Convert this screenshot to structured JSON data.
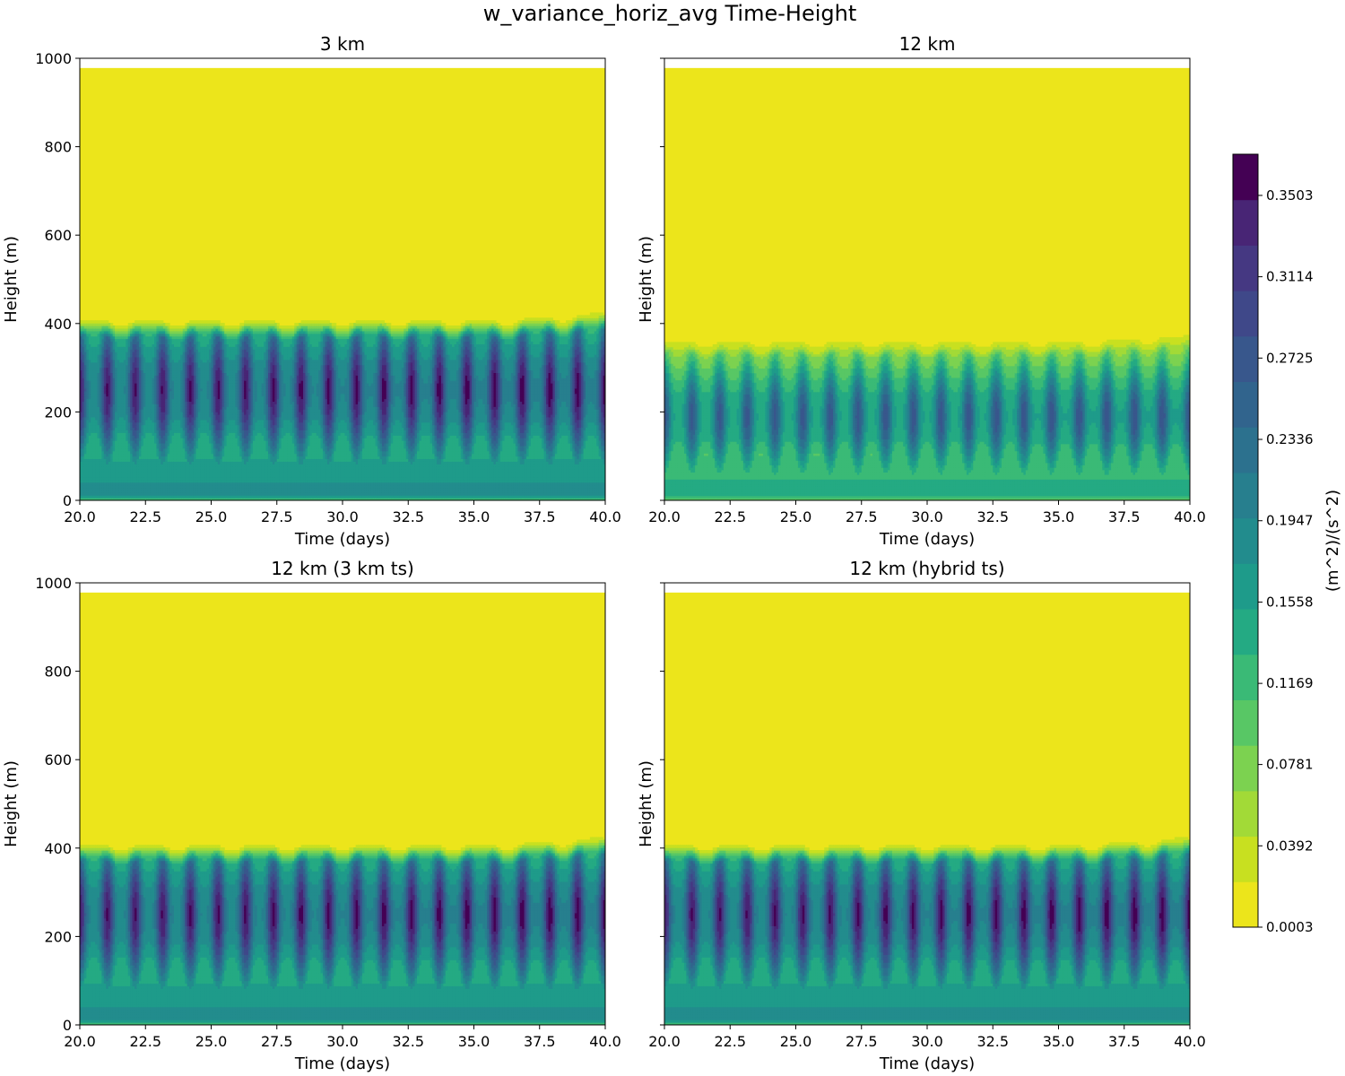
{
  "chart_data": {
    "type": "heatmap",
    "title": "w_variance_horiz_avg Time-Height",
    "x_range": [
      20.0,
      40.0
    ],
    "y_range": [
      0,
      1000
    ],
    "x_ticks": [
      "20.0",
      "22.5",
      "25.0",
      "27.5",
      "30.0",
      "32.5",
      "35.0",
      "37.5",
      "40.0"
    ],
    "y_ticks": [
      "0",
      "200",
      "400",
      "600",
      "800",
      "1000"
    ],
    "panels": [
      {
        "title": "3 km",
        "xlabel": "Time (days)",
        "ylabel": "Height (m)",
        "bl_top": 400,
        "core_height": 250,
        "peak": 0.35,
        "cycles": 19,
        "data_top": 978
      },
      {
        "title": "12 km",
        "xlabel": "Time (days)",
        "ylabel": "Height (m)",
        "bl_top": 360,
        "core_height": 190,
        "peak": 0.27,
        "cycles": 19,
        "data_top": 978
      },
      {
        "title": "12 km (3 km ts)",
        "xlabel": "Time (days)",
        "ylabel": "Height (m)",
        "bl_top": 400,
        "core_height": 250,
        "peak": 0.35,
        "cycles": 19,
        "data_top": 978
      },
      {
        "title": "12 km (hybrid ts)",
        "xlabel": "Time (days)",
        "ylabel": "Height (m)",
        "bl_top": 400,
        "core_height": 250,
        "peak": 0.35,
        "cycles": 19,
        "data_top": 978
      }
    ],
    "colorbar": {
      "label": "(m^2)/(s^2)",
      "min": 0.0003,
      "max": 0.37,
      "tick_labels": [
        "0.0003",
        "0.0392",
        "0.0781",
        "0.1169",
        "0.1558",
        "0.1947",
        "0.2336",
        "0.2725",
        "0.3114",
        "0.3503"
      ],
      "tick_values": [
        0.0003,
        0.0392,
        0.0781,
        0.1169,
        0.1558,
        0.1947,
        0.2336,
        0.2725,
        0.3114,
        0.3503
      ],
      "colors": [
        "#ece51b",
        "#c8e020",
        "#a2da37",
        "#7cd250",
        "#58c765",
        "#3aba76",
        "#24aa83",
        "#1e9b8a",
        "#228c8d",
        "#277f8e",
        "#2c718e",
        "#31648d",
        "#38578c",
        "#3f4889",
        "#453882",
        "#482575",
        "#440154"
      ]
    }
  }
}
